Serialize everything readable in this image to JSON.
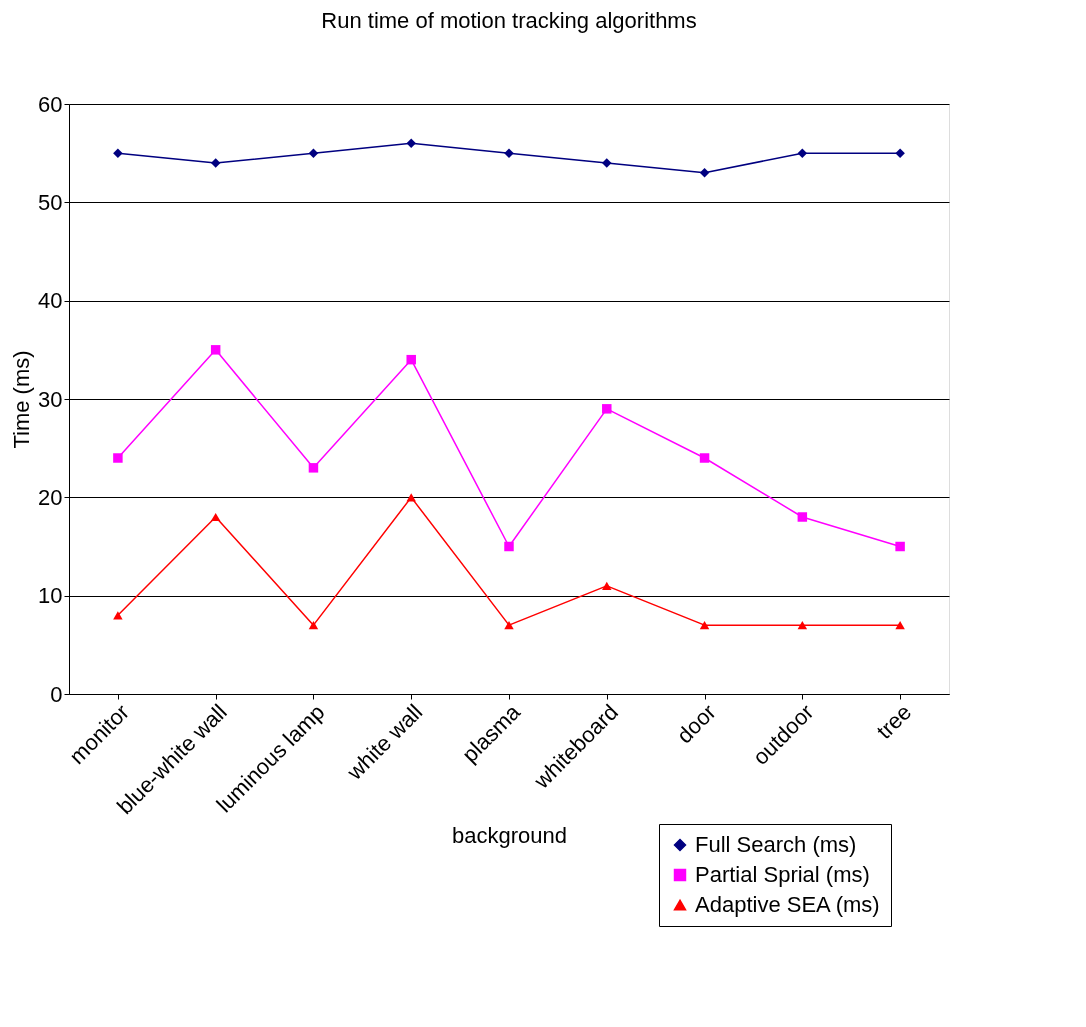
{
  "chart_data": {
    "type": "line",
    "title": "Run time of motion tracking algorithms",
    "xlabel": "background",
    "ylabel": "Time (ms)",
    "categories": [
      "monitor",
      "blue-white wall",
      "luminous lamp",
      "white wall",
      "plasma",
      "whiteboard",
      "door",
      "outdoor",
      "tree"
    ],
    "series": [
      {
        "name": "Full Search (ms)",
        "color": "#000080",
        "marker": "diamond",
        "values": [
          55,
          54,
          55,
          56,
          55,
          54,
          53,
          55,
          55
        ]
      },
      {
        "name": "Partial Sprial (ms)",
        "color": "#ff00ff",
        "marker": "square",
        "values": [
          24,
          35,
          23,
          34,
          15,
          29,
          24,
          18,
          15
        ]
      },
      {
        "name": "Adaptive SEA (ms)",
        "color": "#ff0000",
        "marker": "triangle",
        "values": [
          8,
          18,
          7,
          20,
          7,
          11,
          7,
          7,
          7
        ]
      }
    ],
    "ylim": [
      0,
      60
    ],
    "yticks": [
      0,
      10,
      20,
      30,
      40,
      50,
      60
    ],
    "grid": "y",
    "legend": "bottom right",
    "line_style": "solid"
  }
}
